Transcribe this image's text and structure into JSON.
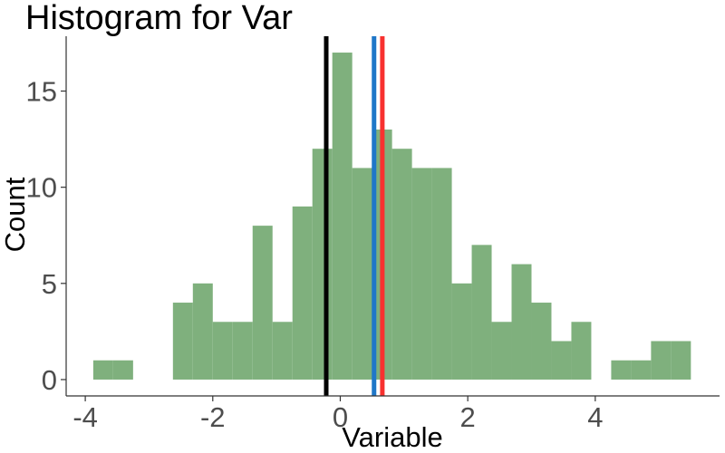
{
  "chart_data": {
    "type": "bar",
    "title": "Histogram for Var",
    "xlabel": "Variable",
    "ylabel": "Count",
    "bin_width": 0.3125,
    "bins": [
      {
        "x0": -3.875,
        "x1": -3.5625,
        "count": 1
      },
      {
        "x0": -3.5625,
        "x1": -3.25,
        "count": 1
      },
      {
        "x0": -3.25,
        "x1": -2.9375,
        "count": 0
      },
      {
        "x0": -2.9375,
        "x1": -2.625,
        "count": 0
      },
      {
        "x0": -2.625,
        "x1": -2.3125,
        "count": 4
      },
      {
        "x0": -2.3125,
        "x1": -2.0,
        "count": 5
      },
      {
        "x0": -2.0,
        "x1": -1.6875,
        "count": 3
      },
      {
        "x0": -1.6875,
        "x1": -1.375,
        "count": 3
      },
      {
        "x0": -1.375,
        "x1": -1.0625,
        "count": 8
      },
      {
        "x0": -1.0625,
        "x1": -0.75,
        "count": 3
      },
      {
        "x0": -0.75,
        "x1": -0.4375,
        "count": 9
      },
      {
        "x0": -0.4375,
        "x1": -0.125,
        "count": 12
      },
      {
        "x0": -0.125,
        "x1": 0.1875,
        "count": 17
      },
      {
        "x0": 0.1875,
        "x1": 0.5,
        "count": 11
      },
      {
        "x0": 0.5,
        "x1": 0.8125,
        "count": 13
      },
      {
        "x0": 0.8125,
        "x1": 1.125,
        "count": 12
      },
      {
        "x0": 1.125,
        "x1": 1.4375,
        "count": 11
      },
      {
        "x0": 1.4375,
        "x1": 1.75,
        "count": 11
      },
      {
        "x0": 1.75,
        "x1": 2.0625,
        "count": 5
      },
      {
        "x0": 2.0625,
        "x1": 2.375,
        "count": 7
      },
      {
        "x0": 2.375,
        "x1": 2.6875,
        "count": 3
      },
      {
        "x0": 2.6875,
        "x1": 3.0,
        "count": 6
      },
      {
        "x0": 3.0,
        "x1": 3.3125,
        "count": 4
      },
      {
        "x0": 3.3125,
        "x1": 3.625,
        "count": 2
      },
      {
        "x0": 3.625,
        "x1": 3.9375,
        "count": 3
      },
      {
        "x0": 3.9375,
        "x1": 4.25,
        "count": 0
      },
      {
        "x0": 4.25,
        "x1": 4.5625,
        "count": 1
      },
      {
        "x0": 4.5625,
        "x1": 4.875,
        "count": 1
      },
      {
        "x0": 4.875,
        "x1": 5.1875,
        "count": 2
      },
      {
        "x0": 5.1875,
        "x1": 5.5,
        "count": 2
      }
    ],
    "reference_lines": [
      {
        "x": -0.22,
        "color": "#000000"
      },
      {
        "x": 0.53,
        "color": "#1f77c8"
      },
      {
        "x": 0.66,
        "color": "#f8312f"
      }
    ],
    "bar_color": "#7fb07d",
    "xlim": [
      -4.3,
      5.95
    ],
    "ylim": [
      -0.85,
      17.85
    ],
    "x_ticks": [
      -4,
      -2,
      0,
      2,
      4
    ],
    "x_tick_labels": [
      "-4",
      "-2",
      "0",
      "2",
      "4"
    ],
    "y_ticks": [
      0,
      5,
      10,
      15
    ],
    "y_tick_labels": [
      "0",
      "5",
      "10",
      "15"
    ],
    "grid": false,
    "legend": "none"
  }
}
